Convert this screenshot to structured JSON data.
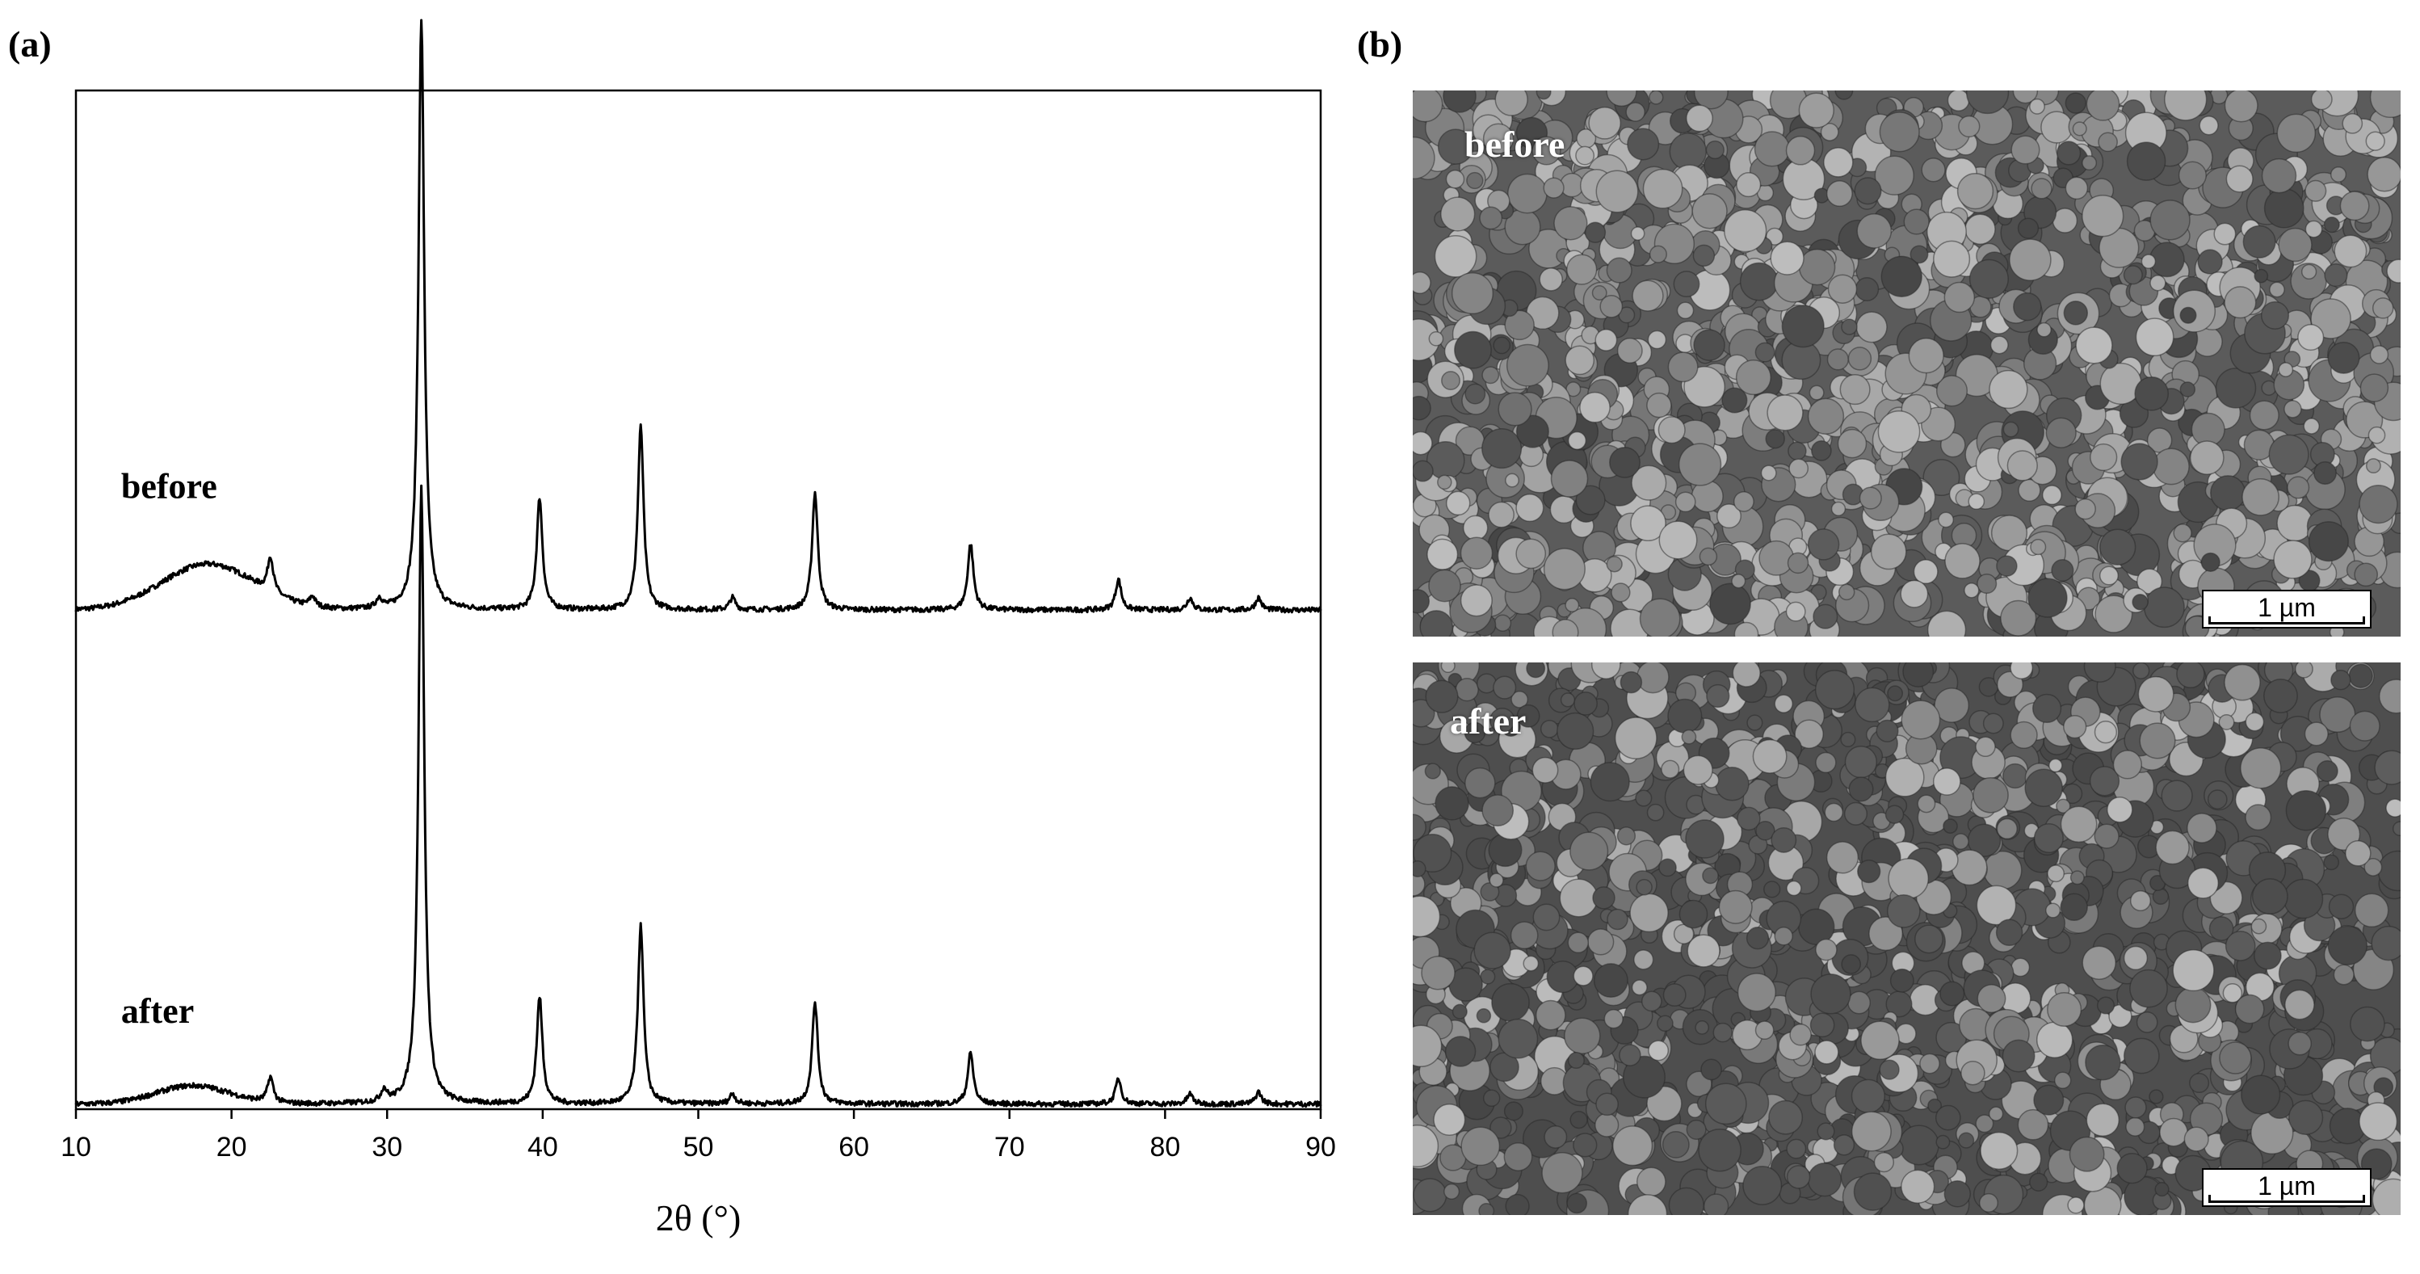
{
  "panels": {
    "a_label": "(a)",
    "b_label": "(b)"
  },
  "chart_data": {
    "type": "line",
    "title": "",
    "xlabel": "2θ (°)",
    "ylabel": "",
    "xlim": [
      10,
      90
    ],
    "xticks": [
      10,
      20,
      30,
      40,
      50,
      60,
      70,
      80,
      90
    ],
    "tick_labels": [
      "10",
      "20",
      "30",
      "40",
      "50",
      "60",
      "70",
      "80",
      "90"
    ],
    "y_ticks_shown": false,
    "grid": false,
    "series": [
      {
        "name": "before",
        "baseline": 0.49,
        "background_hump": {
          "center": 18.5,
          "width": 4.2,
          "height": 0.045
        },
        "peaks": [
          {
            "x": 22.5,
            "h": 0.035
          },
          {
            "x": 25.2,
            "h": 0.01
          },
          {
            "x": 29.5,
            "h": 0.01
          },
          {
            "x": 32.2,
            "h": 0.58
          },
          {
            "x": 39.8,
            "h": 0.11
          },
          {
            "x": 46.3,
            "h": 0.18
          },
          {
            "x": 52.2,
            "h": 0.012
          },
          {
            "x": 57.5,
            "h": 0.115
          },
          {
            "x": 67.5,
            "h": 0.065
          },
          {
            "x": 77.0,
            "h": 0.03
          },
          {
            "x": 81.6,
            "h": 0.012
          },
          {
            "x": 86.0,
            "h": 0.012
          }
        ]
      },
      {
        "name": "after",
        "baseline": 0.005,
        "background_hump": {
          "center": 17.5,
          "width": 3.3,
          "height": 0.018
        },
        "peaks": [
          {
            "x": 22.5,
            "h": 0.025
          },
          {
            "x": 29.8,
            "h": 0.012
          },
          {
            "x": 32.2,
            "h": 0.605
          },
          {
            "x": 39.8,
            "h": 0.105
          },
          {
            "x": 46.3,
            "h": 0.175
          },
          {
            "x": 52.2,
            "h": 0.01
          },
          {
            "x": 57.5,
            "h": 0.1
          },
          {
            "x": 67.5,
            "h": 0.05
          },
          {
            "x": 77.0,
            "h": 0.025
          },
          {
            "x": 81.6,
            "h": 0.01
          },
          {
            "x": 86.0,
            "h": 0.012
          }
        ]
      }
    ],
    "annotations": [
      "before",
      "after"
    ]
  },
  "sem": {
    "before": {
      "label": "before",
      "scale_text": "1 µm"
    },
    "after": {
      "label": "after",
      "scale_text": "1 µm"
    }
  }
}
